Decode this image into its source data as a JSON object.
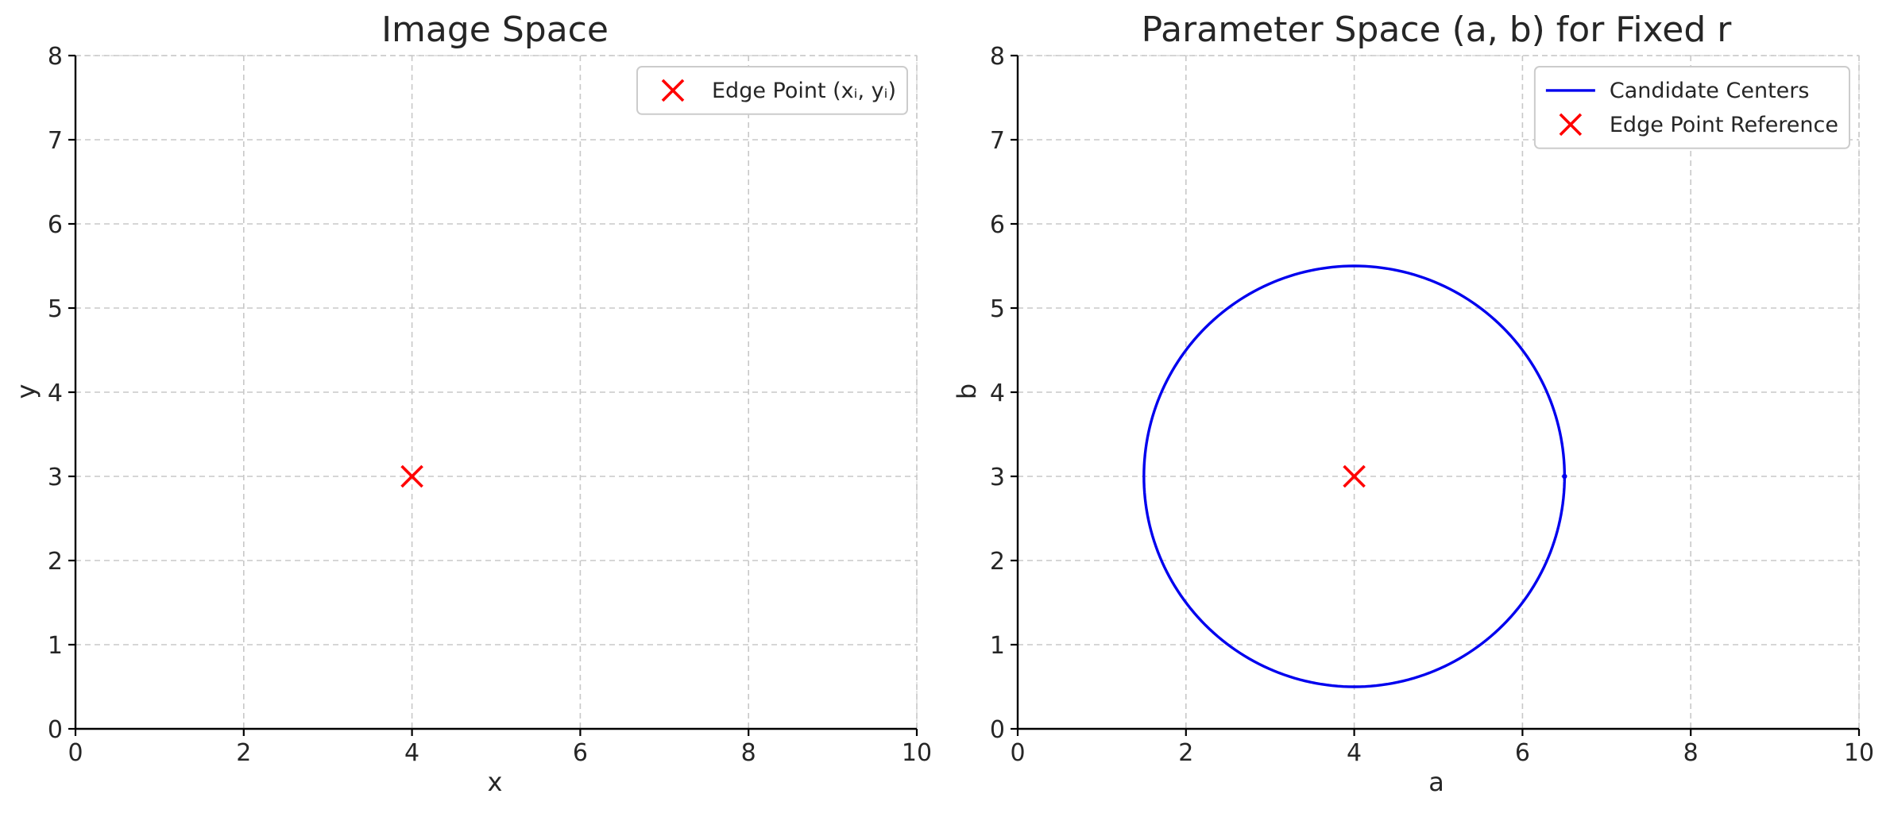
{
  "chart_data": [
    {
      "type": "scatter",
      "title": "Image Space",
      "xlabel": "x",
      "ylabel": "y",
      "xlim": [
        0,
        10
      ],
      "ylim": [
        0,
        8
      ],
      "xticks": [
        0,
        2,
        4,
        6,
        8,
        10
      ],
      "yticks": [
        0,
        1,
        2,
        3,
        4,
        5,
        6,
        7,
        8
      ],
      "grid": true,
      "legend_position": "top-right",
      "series": [
        {
          "name": "Edge Point (xᵢ, yᵢ)",
          "kind": "marker-x",
          "color": "#ff0000",
          "points": [
            [
              4,
              3
            ]
          ]
        }
      ]
    },
    {
      "type": "line",
      "title": "Parameter Space (a, b) for Fixed r",
      "xlabel": "a",
      "ylabel": "b",
      "xlim": [
        0,
        10
      ],
      "ylim": [
        0,
        8
      ],
      "xticks": [
        0,
        2,
        4,
        6,
        8,
        10
      ],
      "yticks": [
        0,
        1,
        2,
        3,
        4,
        5,
        6,
        7,
        8
      ],
      "grid": true,
      "legend_position": "top-right",
      "series": [
        {
          "name": "Candidate Centers",
          "kind": "circle",
          "color": "#0000ee",
          "center": [
            4,
            3
          ],
          "radius": 2.5
        },
        {
          "name": "Edge Point Reference",
          "kind": "marker-x",
          "color": "#ff0000",
          "points": [
            [
              4,
              3
            ]
          ]
        }
      ]
    }
  ]
}
